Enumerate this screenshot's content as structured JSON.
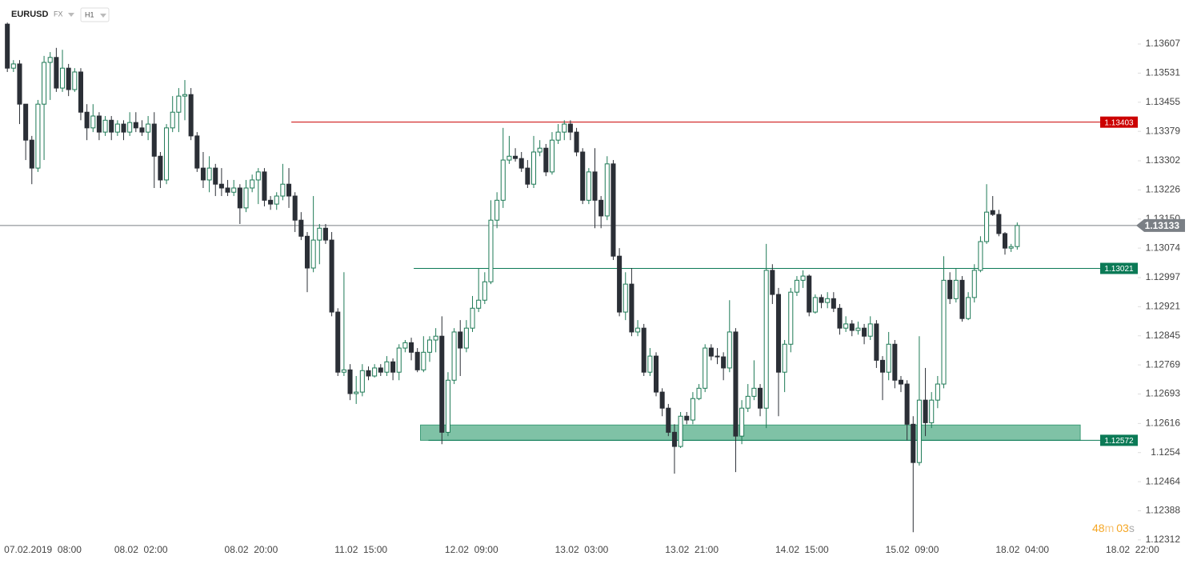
{
  "header": {
    "symbol": "EURUSD",
    "market": "FX",
    "interval": "H1"
  },
  "countdown": {
    "minutes": "48",
    "minutes_unit": "m",
    "seconds": "03",
    "seconds_unit": "s"
  },
  "chart_data": {
    "type": "candlestick",
    "up_color": "#1e7a56",
    "down_color": "#2b2f36",
    "xlim": [
      -1.2,
      184.7
    ],
    "ylim": [
      1.12249,
      1.13722
    ],
    "yticks": [
      1.13607,
      1.13531,
      1.13455,
      1.13379,
      1.13302,
      1.13226,
      {
        "value": 1.1315,
        "label": "1.13150"
      },
      1.13074,
      1.12997,
      1.12921,
      1.12845,
      1.12769,
      1.12693,
      1.12616,
      1.1254,
      1.12464,
      1.12388,
      1.12312
    ],
    "xticks": [
      {
        "value": 0,
        "label": "07.02.2019  08:00"
      },
      {
        "value": 18,
        "label": "08.02  02:00"
      },
      {
        "value": 36,
        "label": "08.02  20:00"
      },
      {
        "value": 54,
        "label": "11.02  15:00"
      },
      {
        "value": 72,
        "label": "12.02  09:00"
      },
      {
        "value": 90,
        "label": "13.02  03:00"
      },
      {
        "value": 108,
        "label": "13.02  21:00"
      },
      {
        "value": 126,
        "label": "14.02  15:00"
      },
      {
        "value": 144,
        "label": "15.02  09:00"
      },
      {
        "value": 162,
        "label": "18.02  04:00"
      },
      {
        "value": 180,
        "label": "18.02  22:00"
      }
    ],
    "levels": [
      {
        "value": 1.13403,
        "color": "#cc0000",
        "x_start": 46.4
      },
      {
        "value": 1.13021,
        "color": "#0b7a56",
        "x_start": 66.4
      },
      {
        "value": 1.12572,
        "color": "#0b7a56",
        "x_start": 68.8
      }
    ],
    "zone": {
      "low": 1.12572,
      "high": 1.12612,
      "x_start": 67.5,
      "x_end": 175.3,
      "color": "#7fc2a6"
    },
    "current_price": {
      "value": 1.13133,
      "color": "#7a7f85"
    },
    "candles": [
      [
        1.13659,
        1.13663,
        1.13534,
        1.13544
      ],
      [
        1.13544,
        1.13565,
        1.13534,
        1.13555
      ],
      [
        1.13555,
        1.13565,
        1.13398,
        1.1345
      ],
      [
        1.1345,
        1.1345,
        1.13304,
        1.13356
      ],
      [
        1.13356,
        1.13367,
        1.13241,
        1.13283
      ],
      [
        1.13283,
        1.13461,
        1.13273,
        1.1345
      ],
      [
        1.1345,
        1.13576,
        1.13304,
        1.13559
      ],
      [
        1.13559,
        1.13586,
        1.13461,
        1.13572
      ],
      [
        1.13572,
        1.13597,
        1.13482,
        1.13492
      ],
      [
        1.13492,
        1.13592,
        1.13482,
        1.13544
      ],
      [
        1.13544,
        1.13555,
        1.13471,
        1.13488
      ],
      [
        1.13488,
        1.13544,
        1.13482,
        1.13534
      ],
      [
        1.13534,
        1.13544,
        1.13408,
        1.13429
      ],
      [
        1.13429,
        1.1345,
        1.13356,
        1.13388
      ],
      [
        1.13388,
        1.1345,
        1.13377,
        1.13419
      ],
      [
        1.13419,
        1.13429,
        1.13356,
        1.13377
      ],
      [
        1.13377,
        1.13419,
        1.13367,
        1.13408
      ],
      [
        1.13408,
        1.13419,
        1.13356,
        1.13377
      ],
      [
        1.13377,
        1.13408,
        1.13367,
        1.13398
      ],
      [
        1.13398,
        1.13408,
        1.13356,
        1.13377
      ],
      [
        1.13377,
        1.13429,
        1.13367,
        1.13402
      ],
      [
        1.13402,
        1.13429,
        1.13377,
        1.13388
      ],
      [
        1.13388,
        1.13408,
        1.13367,
        1.13377
      ],
      [
        1.13377,
        1.13419,
        1.13356,
        1.13398
      ],
      [
        1.13398,
        1.13429,
        1.13231,
        1.13314
      ],
      [
        1.13314,
        1.13325,
        1.13231,
        1.13252
      ],
      [
        1.13252,
        1.13398,
        1.13241,
        1.13388
      ],
      [
        1.13388,
        1.13471,
        1.13377,
        1.13429
      ],
      [
        1.13429,
        1.13492,
        1.13377,
        1.13471
      ],
      [
        1.13471,
        1.13513,
        1.13408,
        1.13475
      ],
      [
        1.13475,
        1.13492,
        1.13356,
        1.13367
      ],
      [
        1.13367,
        1.13377,
        1.13273,
        1.13283
      ],
      [
        1.13283,
        1.13325,
        1.13231,
        1.13252
      ],
      [
        1.13252,
        1.13314,
        1.1322,
        1.13283
      ],
      [
        1.13283,
        1.13294,
        1.1321,
        1.13241
      ],
      [
        1.13241,
        1.13283,
        1.1321,
        1.13231
      ],
      [
        1.13231,
        1.13252,
        1.1321,
        1.1322
      ],
      [
        1.1322,
        1.13252,
        1.1321,
        1.13231
      ],
      [
        1.13231,
        1.13241,
        1.13137,
        1.13179
      ],
      [
        1.13179,
        1.13252,
        1.13168,
        1.13231
      ],
      [
        1.13231,
        1.13266,
        1.1322,
        1.13252
      ],
      [
        1.13252,
        1.13283,
        1.13189,
        1.13273
      ],
      [
        1.13273,
        1.13283,
        1.13183,
        1.13199
      ],
      [
        1.13199,
        1.1321,
        1.13174,
        1.13189
      ],
      [
        1.13189,
        1.1322,
        1.13174,
        1.1321
      ],
      [
        1.1321,
        1.13294,
        1.13199,
        1.13241
      ],
      [
        1.13241,
        1.13283,
        1.13179,
        1.1321
      ],
      [
        1.1321,
        1.1322,
        1.13116,
        1.13147
      ],
      [
        1.13147,
        1.13168,
        1.13095,
        1.13105
      ],
      [
        1.13105,
        1.13116,
        1.12959,
        1.13022
      ],
      [
        1.13022,
        1.1321,
        1.13011,
        1.13095
      ],
      [
        1.13095,
        1.13137,
        1.13032,
        1.13126
      ],
      [
        1.13126,
        1.13137,
        1.13085,
        1.13095
      ],
      [
        1.13095,
        1.13116,
        1.12896,
        1.12907
      ],
      [
        1.12907,
        1.12917,
        1.1274,
        1.1275
      ],
      [
        1.1275,
        1.13011,
        1.1274,
        1.12756
      ],
      [
        1.12756,
        1.12771,
        1.12677,
        1.12694
      ],
      [
        1.12694,
        1.1274,
        1.12667,
        1.12698
      ],
      [
        1.12698,
        1.12771,
        1.12687,
        1.12754
      ],
      [
        1.12754,
        1.12765,
        1.12729,
        1.1274
      ],
      [
        1.1274,
        1.12771,
        1.12736,
        1.12761
      ],
      [
        1.12761,
        1.12771,
        1.1274,
        1.1275
      ],
      [
        1.1275,
        1.12792,
        1.1274,
        1.12777
      ],
      [
        1.12777,
        1.12786,
        1.12729,
        1.1275
      ],
      [
        1.1275,
        1.12823,
        1.12729,
        1.12813
      ],
      [
        1.12813,
        1.12834,
        1.12802,
        1.12827
      ],
      [
        1.12827,
        1.1284,
        1.12781,
        1.12802
      ],
      [
        1.12802,
        1.12813,
        1.1275,
        1.12756
      ],
      [
        1.12756,
        1.12844,
        1.1275,
        1.12802
      ],
      [
        1.12802,
        1.12844,
        1.12777,
        1.12834
      ],
      [
        1.12834,
        1.12865,
        1.12802,
        1.12844
      ],
      [
        1.12844,
        1.12896,
        1.12562,
        1.12593
      ],
      [
        1.12593,
        1.1275,
        1.12583,
        1.12729
      ],
      [
        1.12729,
        1.12865,
        1.12719,
        1.12855
      ],
      [
        1.12855,
        1.12886,
        1.1274,
        1.12813
      ],
      [
        1.12813,
        1.12886,
        1.12802,
        1.12865
      ],
      [
        1.12865,
        1.12949,
        1.12855,
        1.12917
      ],
      [
        1.12917,
        1.13022,
        1.12907,
        1.12938
      ],
      [
        1.12938,
        1.13011,
        1.12928,
        1.12986
      ],
      [
        1.12986,
        1.13199,
        1.1298,
        1.13147
      ],
      [
        1.13147,
        1.1322,
        1.13126,
        1.13199
      ],
      [
        1.13199,
        1.13388,
        1.13179,
        1.13304
      ],
      [
        1.13304,
        1.13367,
        1.13294,
        1.13314
      ],
      [
        1.13314,
        1.13335,
        1.133,
        1.13308
      ],
      [
        1.13308,
        1.13325,
        1.13273,
        1.13283
      ],
      [
        1.13283,
        1.13304,
        1.13231,
        1.13241
      ],
      [
        1.13241,
        1.13367,
        1.13231,
        1.13325
      ],
      [
        1.13325,
        1.13356,
        1.13314,
        1.13335
      ],
      [
        1.13335,
        1.13346,
        1.13262,
        1.13273
      ],
      [
        1.13273,
        1.13377,
        1.13266,
        1.13356
      ],
      [
        1.13356,
        1.13398,
        1.13346,
        1.13377
      ],
      [
        1.13377,
        1.13408,
        1.13356,
        1.13398
      ],
      [
        1.13398,
        1.13408,
        1.13356,
        1.13377
      ],
      [
        1.13377,
        1.13388,
        1.13314,
        1.13325
      ],
      [
        1.13325,
        1.13335,
        1.13189,
        1.13199
      ],
      [
        1.13199,
        1.13283,
        1.13189,
        1.13273
      ],
      [
        1.13273,
        1.13335,
        1.13126,
        1.13199
      ],
      [
        1.13199,
        1.1321,
        1.13126,
        1.13158
      ],
      [
        1.13158,
        1.13314,
        1.13147,
        1.13294
      ],
      [
        1.13294,
        1.13304,
        1.13043,
        1.13053
      ],
      [
        1.13053,
        1.13074,
        1.12896,
        1.12907
      ],
      [
        1.12907,
        1.13011,
        1.12886,
        1.1298
      ],
      [
        1.1298,
        1.13022,
        1.12844,
        1.12855
      ],
      [
        1.12855,
        1.12886,
        1.12844,
        1.12865
      ],
      [
        1.12865,
        1.12876,
        1.1274,
        1.1275
      ],
      [
        1.1275,
        1.12813,
        1.1274,
        1.12792
      ],
      [
        1.12792,
        1.12802,
        1.12687,
        1.12698
      ],
      [
        1.12698,
        1.12708,
        1.12635,
        1.12656
      ],
      [
        1.12656,
        1.12667,
        1.12583,
        1.12593
      ],
      [
        1.12593,
        1.12614,
        1.12485,
        1.12556
      ],
      [
        1.12556,
        1.12646,
        1.12552,
        1.12635
      ],
      [
        1.12635,
        1.12646,
        1.12614,
        1.12625
      ],
      [
        1.12625,
        1.12698,
        1.12614,
        1.12681
      ],
      [
        1.12681,
        1.12719,
        1.12677,
        1.12708
      ],
      [
        1.12708,
        1.12823,
        1.12698,
        1.12813
      ],
      [
        1.12813,
        1.12823,
        1.12781,
        1.12792
      ],
      [
        1.12792,
        1.12813,
        1.12771,
        1.1279
      ],
      [
        1.1279,
        1.12802,
        1.12729,
        1.12761
      ],
      [
        1.12761,
        1.12938,
        1.1275,
        1.12855
      ],
      [
        1.12855,
        1.12865,
        1.12489,
        1.12583
      ],
      [
        1.12583,
        1.12677,
        1.12562,
        1.12656
      ],
      [
        1.12656,
        1.12719,
        1.12646,
        1.12687
      ],
      [
        1.12687,
        1.12781,
        1.12677,
        1.12708
      ],
      [
        1.12708,
        1.12719,
        1.12635,
        1.12656
      ],
      [
        1.12656,
        1.13085,
        1.12604,
        1.13016
      ],
      [
        1.13016,
        1.13032,
        1.12928,
        1.12953
      ],
      [
        1.12953,
        1.1297,
        1.12635,
        1.1275
      ],
      [
        1.1275,
        1.12834,
        1.12698,
        1.12823
      ],
      [
        1.12823,
        1.1297,
        1.12802,
        1.12959
      ],
      [
        1.12959,
        1.13001,
        1.12949,
        1.1299
      ],
      [
        1.1299,
        1.13016,
        1.1297,
        1.13001
      ],
      [
        1.13001,
        1.13005,
        1.12896,
        1.12907
      ],
      [
        1.12907,
        1.12953,
        1.12903,
        1.12945
      ],
      [
        1.12945,
        1.12953,
        1.12917,
        1.12932
      ],
      [
        1.12932,
        1.12959,
        1.12917,
        1.12942
      ],
      [
        1.12942,
        1.12959,
        1.12907,
        1.12917
      ],
      [
        1.12917,
        1.12928,
        1.12848,
        1.12865
      ],
      [
        1.12865,
        1.12896,
        1.12855,
        1.12876
      ],
      [
        1.12876,
        1.12886,
        1.12844,
        1.12859
      ],
      [
        1.12859,
        1.12882,
        1.12848,
        1.12865
      ],
      [
        1.12865,
        1.12876,
        1.12823,
        1.12844
      ],
      [
        1.12844,
        1.12896,
        1.12834,
        1.12876
      ],
      [
        1.12876,
        1.12886,
        1.12761,
        1.12781
      ],
      [
        1.12781,
        1.12792,
        1.12677,
        1.1275
      ],
      [
        1.1275,
        1.12855,
        1.12729,
        1.12823
      ],
      [
        1.12823,
        1.12834,
        1.12708,
        1.12729
      ],
      [
        1.12729,
        1.1274,
        1.12698,
        1.12719
      ],
      [
        1.12719,
        1.12729,
        1.12572,
        1.12614
      ],
      [
        1.12614,
        1.12635,
        1.12332,
        1.12514
      ],
      [
        1.12514,
        1.12844,
        1.12506,
        1.12677
      ],
      [
        1.12677,
        1.12761,
        1.12583,
        1.12618
      ],
      [
        1.12618,
        1.12698,
        1.12604,
        1.12677
      ],
      [
        1.12677,
        1.1274,
        1.12656,
        1.12719
      ],
      [
        1.12719,
        1.13053,
        1.12708,
        1.1299
      ],
      [
        1.1299,
        1.13011,
        1.12928,
        1.12942
      ],
      [
        1.12942,
        1.13022,
        1.12932,
        1.1299
      ],
      [
        1.1299,
        1.13001,
        1.12882,
        1.1289
      ],
      [
        1.1289,
        1.12959,
        1.12886,
        1.12945
      ],
      [
        1.12945,
        1.13032,
        1.12932,
        1.13016
      ],
      [
        1.13016,
        1.13105,
        1.13011,
        1.13091
      ],
      [
        1.13091,
        1.13241,
        1.13085,
        1.13168
      ],
      [
        1.13172,
        1.1321,
        1.13158,
        1.13162
      ],
      [
        1.13162,
        1.13174,
        1.13105,
        1.13112
      ],
      [
        1.13112,
        1.13116,
        1.13057,
        1.13074
      ],
      [
        1.13074,
        1.13085,
        1.13064,
        1.13078
      ],
      [
        1.13078,
        1.13141,
        1.1307,
        1.13133
      ]
    ]
  }
}
